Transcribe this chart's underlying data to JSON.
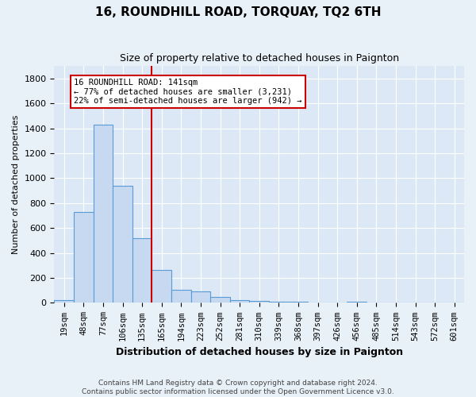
{
  "title": "16, ROUNDHILL ROAD, TORQUAY, TQ2 6TH",
  "subtitle": "Size of property relative to detached houses in Paignton",
  "xlabel": "Distribution of detached houses by size in Paignton",
  "ylabel": "Number of detached properties",
  "footer": "Contains HM Land Registry data © Crown copyright and database right 2024.\nContains public sector information licensed under the Open Government Licence v3.0.",
  "bin_labels": [
    "19sqm",
    "48sqm",
    "77sqm",
    "106sqm",
    "135sqm",
    "165sqm",
    "194sqm",
    "223sqm",
    "252sqm",
    "281sqm",
    "310sqm",
    "339sqm",
    "368sqm",
    "397sqm",
    "426sqm",
    "456sqm",
    "485sqm",
    "514sqm",
    "543sqm",
    "572sqm",
    "601sqm"
  ],
  "bar_heights": [
    20,
    730,
    1430,
    940,
    520,
    265,
    105,
    90,
    45,
    20,
    15,
    10,
    8,
    5,
    5,
    10,
    3,
    1,
    1,
    1,
    0
  ],
  "bar_color": "#c6d9f1",
  "bar_edge_color": "#5b9bd5",
  "red_line_x": 4.5,
  "red_line_color": "#cc0000",
  "annotation_text": "16 ROUNDHILL ROAD: 141sqm\n← 77% of detached houses are smaller (3,231)\n22% of semi-detached houses are larger (942) →",
  "annotation_box_color": "#ffffff",
  "annotation_box_edge_color": "#cc0000",
  "ylim": [
    0,
    1900
  ],
  "yticks": [
    0,
    200,
    400,
    600,
    800,
    1000,
    1200,
    1400,
    1600,
    1800
  ],
  "background_color": "#e8f0f8",
  "plot_background_color": "#dce8f5",
  "grid_color": "#ffffff",
  "annotation_fontsize": 7.5,
  "title_fontsize": 11,
  "subtitle_fontsize": 9,
  "ylabel_fontsize": 8,
  "xlabel_fontsize": 9,
  "tick_fontsize": 7.5,
  "ytick_fontsize": 8
}
